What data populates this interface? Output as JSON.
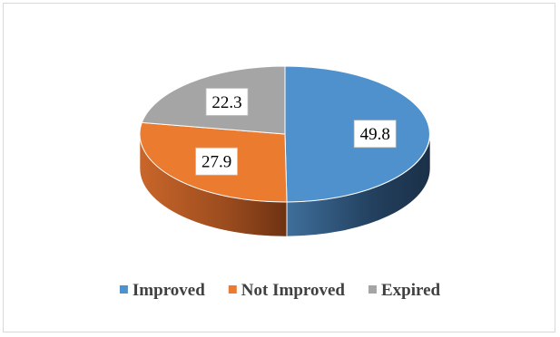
{
  "chart_data": {
    "type": "pie",
    "style": "3d",
    "categories": [
      "Improved",
      "Not Improved",
      "Expired"
    ],
    "values": [
      49.8,
      27.9,
      22.3
    ],
    "colors": [
      "#4F91CD",
      "#EB7B2F",
      "#A5A5A5"
    ],
    "data_labels": [
      "49.8",
      "27.9",
      "22.3"
    ],
    "legend_position": "bottom"
  }
}
